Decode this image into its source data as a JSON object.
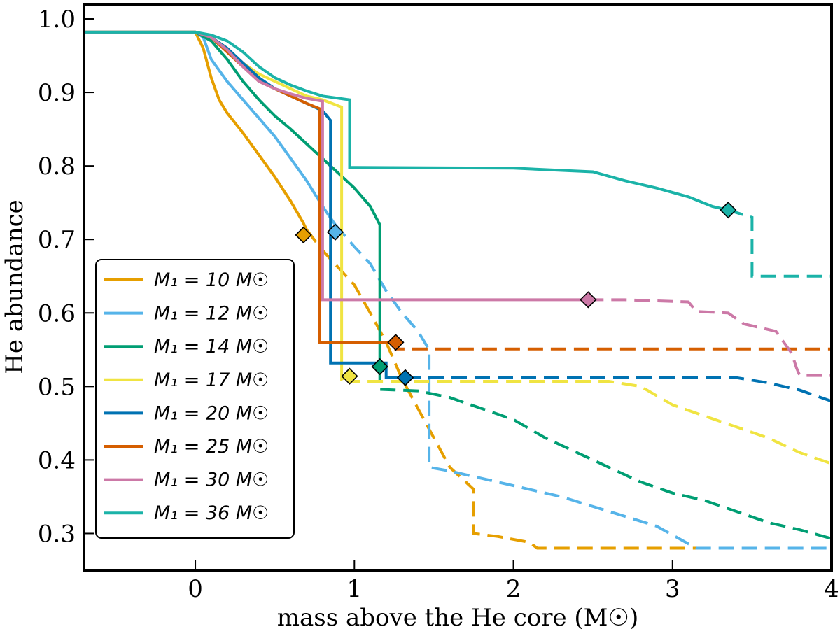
{
  "chart_data": {
    "type": "line",
    "title": "",
    "xlabel": "mass above the He core (M☉)",
    "ylabel": "He abundance",
    "xlim": [
      -0.7,
      4.0
    ],
    "ylim": [
      0.25,
      1.02
    ],
    "xticks": [
      0,
      1,
      2,
      3,
      4
    ],
    "xtick_labels": [
      "0",
      "1",
      "2",
      "3",
      "4"
    ],
    "yticks": [
      0.3,
      0.4,
      0.5,
      0.6,
      0.7,
      0.8,
      0.9,
      1.0
    ],
    "ytick_labels": [
      "0.3",
      "0.4",
      "0.5",
      "0.6",
      "0.7",
      "0.8",
      "0.9",
      "1.0"
    ],
    "grid": false,
    "legend_position": "lower-left",
    "notes": "solid = before marker, dashed = after marker",
    "series": [
      {
        "name": "M₁ = 10 M☉",
        "color": "#E69F00",
        "solid": [
          [
            -0.7,
            0.982
          ],
          [
            0.0,
            0.982
          ],
          [
            0.05,
            0.96
          ],
          [
            0.1,
            0.92
          ],
          [
            0.15,
            0.89
          ],
          [
            0.2,
            0.872
          ],
          [
            0.3,
            0.845
          ],
          [
            0.4,
            0.815
          ],
          [
            0.5,
            0.785
          ],
          [
            0.6,
            0.752
          ],
          [
            0.68,
            0.722
          ],
          [
            0.7,
            0.713
          ]
        ],
        "dashed": [
          [
            0.7,
            0.713
          ],
          [
            0.8,
            0.685
          ],
          [
            1.0,
            0.638
          ],
          [
            1.1,
            0.6
          ],
          [
            1.2,
            0.56
          ],
          [
            1.3,
            0.51
          ],
          [
            1.4,
            0.47
          ],
          [
            1.5,
            0.43
          ],
          [
            1.6,
            0.39
          ],
          [
            1.65,
            0.38
          ],
          [
            1.75,
            0.36
          ],
          [
            1.75,
            0.3
          ],
          [
            1.9,
            0.296
          ],
          [
            2.1,
            0.288
          ],
          [
            2.15,
            0.28
          ],
          [
            3.15,
            0.28
          ]
        ],
        "marker": [
          0.68,
          0.706
        ]
      },
      {
        "name": "M₁ = 12 M☉",
        "color": "#56B4E9",
        "solid": [
          [
            -0.7,
            0.982
          ],
          [
            0.0,
            0.982
          ],
          [
            0.05,
            0.975
          ],
          [
            0.1,
            0.945
          ],
          [
            0.2,
            0.915
          ],
          [
            0.3,
            0.89
          ],
          [
            0.4,
            0.865
          ],
          [
            0.5,
            0.84
          ],
          [
            0.6,
            0.81
          ],
          [
            0.7,
            0.78
          ],
          [
            0.8,
            0.745
          ],
          [
            0.88,
            0.72
          ]
        ],
        "dashed": [
          [
            0.88,
            0.72
          ],
          [
            1.0,
            0.69
          ],
          [
            1.1,
            0.667
          ],
          [
            1.2,
            0.63
          ],
          [
            1.3,
            0.6
          ],
          [
            1.4,
            0.575
          ],
          [
            1.47,
            0.55
          ],
          [
            1.47,
            0.39
          ],
          [
            1.6,
            0.385
          ],
          [
            1.8,
            0.375
          ],
          [
            2.1,
            0.36
          ],
          [
            2.3,
            0.35
          ],
          [
            2.6,
            0.33
          ],
          [
            2.9,
            0.31
          ],
          [
            3.15,
            0.28
          ],
          [
            4.0,
            0.28
          ]
        ],
        "marker": [
          0.88,
          0.71
        ]
      },
      {
        "name": "M₁ = 14 M☉",
        "color": "#009E73",
        "solid": [
          [
            -0.7,
            0.982
          ],
          [
            0.0,
            0.982
          ],
          [
            0.1,
            0.97
          ],
          [
            0.2,
            0.945
          ],
          [
            0.3,
            0.915
          ],
          [
            0.4,
            0.89
          ],
          [
            0.5,
            0.868
          ],
          [
            0.6,
            0.85
          ],
          [
            0.7,
            0.83
          ],
          [
            0.8,
            0.81
          ],
          [
            0.9,
            0.79
          ],
          [
            1.0,
            0.77
          ],
          [
            1.1,
            0.745
          ],
          [
            1.16,
            0.72
          ],
          [
            1.16,
            0.527
          ]
        ],
        "dashed": [
          [
            1.16,
            0.527
          ],
          [
            1.16,
            0.496
          ],
          [
            1.4,
            0.494
          ],
          [
            1.6,
            0.485
          ],
          [
            1.8,
            0.47
          ],
          [
            2.0,
            0.455
          ],
          [
            2.2,
            0.43
          ],
          [
            2.4,
            0.41
          ],
          [
            2.6,
            0.39
          ],
          [
            2.8,
            0.37
          ],
          [
            3.0,
            0.355
          ],
          [
            3.2,
            0.345
          ],
          [
            3.4,
            0.33
          ],
          [
            3.6,
            0.315
          ],
          [
            3.8,
            0.305
          ],
          [
            4.0,
            0.293
          ]
        ],
        "marker": [
          1.16,
          0.527
        ]
      },
      {
        "name": "M₁ = 17 M☉",
        "color": "#F0E442",
        "solid": [
          [
            -0.7,
            0.982
          ],
          [
            0.0,
            0.982
          ],
          [
            0.1,
            0.975
          ],
          [
            0.2,
            0.96
          ],
          [
            0.3,
            0.94
          ],
          [
            0.4,
            0.925
          ],
          [
            0.5,
            0.915
          ],
          [
            0.6,
            0.905
          ],
          [
            0.7,
            0.895
          ],
          [
            0.8,
            0.89
          ],
          [
            0.92,
            0.88
          ],
          [
            0.92,
            0.51
          ],
          [
            0.97,
            0.514
          ]
        ],
        "dashed": [
          [
            0.97,
            0.514
          ],
          [
            0.97,
            0.507
          ],
          [
            2.6,
            0.507
          ],
          [
            2.8,
            0.5
          ],
          [
            3.0,
            0.475
          ],
          [
            3.2,
            0.46
          ],
          [
            3.4,
            0.445
          ],
          [
            3.6,
            0.43
          ],
          [
            3.8,
            0.41
          ],
          [
            4.0,
            0.395
          ]
        ],
        "marker": [
          0.97,
          0.514
        ]
      },
      {
        "name": "M₁ = 20 M☉",
        "color": "#0072B2",
        "solid": [
          [
            -0.7,
            0.982
          ],
          [
            0.0,
            0.982
          ],
          [
            0.1,
            0.975
          ],
          [
            0.2,
            0.96
          ],
          [
            0.3,
            0.94
          ],
          [
            0.4,
            0.92
          ],
          [
            0.5,
            0.905
          ],
          [
            0.6,
            0.895
          ],
          [
            0.7,
            0.885
          ],
          [
            0.8,
            0.875
          ],
          [
            0.85,
            0.862
          ],
          [
            0.85,
            0.532
          ],
          [
            1.2,
            0.532
          ],
          [
            1.2,
            0.512
          ],
          [
            1.32,
            0.512
          ]
        ],
        "dashed": [
          [
            1.32,
            0.512
          ],
          [
            3.2,
            0.512
          ],
          [
            3.4,
            0.512
          ],
          [
            3.6,
            0.505
          ],
          [
            3.8,
            0.495
          ],
          [
            4.0,
            0.48
          ]
        ],
        "marker": [
          1.32,
          0.512
        ]
      },
      {
        "name": "M₁ = 25 M☉",
        "color": "#D55E00",
        "solid": [
          [
            -0.7,
            0.982
          ],
          [
            0.0,
            0.982
          ],
          [
            0.1,
            0.975
          ],
          [
            0.2,
            0.955
          ],
          [
            0.3,
            0.935
          ],
          [
            0.4,
            0.915
          ],
          [
            0.5,
            0.905
          ],
          [
            0.6,
            0.895
          ],
          [
            0.7,
            0.885
          ],
          [
            0.78,
            0.878
          ],
          [
            0.78,
            0.56
          ],
          [
            1.26,
            0.56
          ]
        ],
        "dashed": [
          [
            1.26,
            0.56
          ],
          [
            1.26,
            0.551
          ],
          [
            4.0,
            0.551
          ]
        ],
        "marker": [
          1.26,
          0.56
        ]
      },
      {
        "name": "M₁ = 30 M☉",
        "color": "#CC79A7",
        "solid": [
          [
            -0.7,
            0.982
          ],
          [
            0.0,
            0.982
          ],
          [
            0.1,
            0.975
          ],
          [
            0.2,
            0.958
          ],
          [
            0.3,
            0.935
          ],
          [
            0.4,
            0.915
          ],
          [
            0.5,
            0.905
          ],
          [
            0.6,
            0.898
          ],
          [
            0.7,
            0.892
          ],
          [
            0.8,
            0.888
          ],
          [
            0.8,
            0.618
          ],
          [
            2.47,
            0.618
          ]
        ],
        "dashed": [
          [
            2.47,
            0.618
          ],
          [
            2.7,
            0.618
          ],
          [
            3.1,
            0.615
          ],
          [
            3.15,
            0.602
          ],
          [
            3.35,
            0.6
          ],
          [
            3.45,
            0.585
          ],
          [
            3.65,
            0.575
          ],
          [
            3.75,
            0.545
          ],
          [
            3.78,
            0.525
          ],
          [
            3.8,
            0.515
          ],
          [
            4.0,
            0.515
          ]
        ],
        "marker": [
          2.47,
          0.618
        ]
      },
      {
        "name": "M₁ = 36 M☉",
        "color": "#1BB3A8",
        "solid": [
          [
            -0.7,
            0.982
          ],
          [
            0.0,
            0.982
          ],
          [
            0.1,
            0.978
          ],
          [
            0.2,
            0.97
          ],
          [
            0.3,
            0.955
          ],
          [
            0.4,
            0.935
          ],
          [
            0.5,
            0.92
          ],
          [
            0.6,
            0.91
          ],
          [
            0.7,
            0.902
          ],
          [
            0.8,
            0.895
          ],
          [
            0.97,
            0.89
          ],
          [
            0.97,
            0.798
          ],
          [
            2.0,
            0.797
          ],
          [
            2.5,
            0.792
          ],
          [
            2.7,
            0.78
          ],
          [
            2.9,
            0.77
          ],
          [
            3.1,
            0.758
          ],
          [
            3.25,
            0.745
          ],
          [
            3.35,
            0.74
          ]
        ],
        "dashed": [
          [
            3.35,
            0.74
          ],
          [
            3.5,
            0.73
          ],
          [
            3.5,
            0.65
          ],
          [
            4.0,
            0.65
          ]
        ],
        "marker": [
          3.35,
          0.74
        ]
      }
    ]
  }
}
